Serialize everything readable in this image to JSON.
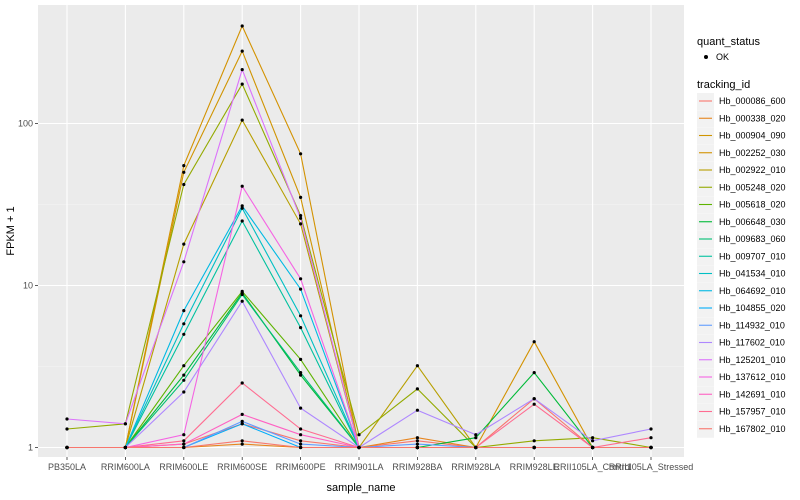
{
  "chart_data": {
    "type": "line",
    "xlabel": "sample_name",
    "ylabel": "FPKM + 1",
    "y_scale": "log10",
    "ylim": [
      0.9,
      450
    ],
    "y_ticks": [
      1,
      10,
      100
    ],
    "y_tick_labels": [
      "1",
      "10",
      "100"
    ],
    "categories": [
      "PB350LA",
      "RRIM600LA",
      "RRIM600LE",
      "RRIM600SE",
      "RRIM600PE",
      "RRIM901LA",
      "RRIM928BA",
      "RRIM928LA",
      "RRIM928LE",
      "RRII105LA_Control",
      "RRII105LA_Stressed"
    ],
    "legend_point_title": "quant_status",
    "legend_point_label": "OK",
    "legend_line_title": "tracking_id",
    "series": [
      {
        "name": "Hb_000086_600",
        "color": "#F8766D",
        "values": [
          1.0,
          1.0,
          1.05,
          1.4,
          1.1,
          1.0,
          1.1,
          1.0,
          2.0,
          1.0,
          1.0
        ]
      },
      {
        "name": "Hb_000338_020",
        "color": "#E7851E",
        "values": [
          1.0,
          1.0,
          1.0,
          1.05,
          1.0,
          1.0,
          1.15,
          1.0,
          1.0,
          1.0,
          1.0
        ]
      },
      {
        "name": "Hb_000904_090",
        "color": "#D09400",
        "values": [
          1.0,
          1.0,
          50,
          280,
          35,
          1.0,
          1.0,
          1.0,
          1.0,
          1.0,
          1.0
        ]
      },
      {
        "name": "Hb_002252_030",
        "color": "#D39200",
        "values": [
          1.0,
          1.0,
          55,
          400,
          65,
          1.0,
          1.0,
          1.0,
          4.5,
          1.0,
          1.0
        ]
      },
      {
        "name": "Hb_002922_010",
        "color": "#B79F00",
        "values": [
          1.0,
          1.0,
          18,
          105,
          24,
          1.0,
          3.2,
          1.0,
          1.0,
          1.0,
          1.0
        ]
      },
      {
        "name": "Hb_005248_020",
        "color": "#93AA00",
        "values": [
          1.3,
          1.4,
          42,
          175,
          27,
          1.2,
          2.3,
          1.0,
          1.1,
          1.15,
          1.0
        ]
      },
      {
        "name": "Hb_005618_020",
        "color": "#5EB300",
        "values": [
          1.0,
          1.0,
          3.2,
          9.2,
          3.5,
          1.0,
          1.0,
          1.0,
          1.0,
          1.0,
          1.0
        ]
      },
      {
        "name": "Hb_006648_030",
        "color": "#00BA38",
        "values": [
          1.0,
          1.0,
          2.8,
          9.0,
          2.8,
          1.0,
          1.0,
          1.15,
          2.9,
          1.0,
          1.0
        ]
      },
      {
        "name": "Hb_009683_060",
        "color": "#00BF74",
        "values": [
          1.0,
          1.0,
          2.6,
          8.8,
          2.9,
          1.0,
          1.0,
          1.0,
          1.0,
          1.0,
          1.0
        ]
      },
      {
        "name": "Hb_009707_010",
        "color": "#00C19F",
        "values": [
          1.0,
          1.0,
          5.0,
          25,
          5.5,
          1.0,
          1.0,
          1.0,
          1.0,
          1.0,
          1.0
        ]
      },
      {
        "name": "Hb_041534_010",
        "color": "#00BFC4",
        "values": [
          1.0,
          1.0,
          5.8,
          30,
          6.5,
          1.0,
          1.0,
          1.0,
          1.0,
          1.0,
          1.0
        ]
      },
      {
        "name": "Hb_064692_010",
        "color": "#00B9E3",
        "values": [
          1.0,
          1.0,
          7.0,
          31,
          9.5,
          1.0,
          1.0,
          1.0,
          1.0,
          1.0,
          1.0
        ]
      },
      {
        "name": "Hb_104855_020",
        "color": "#00ADFA",
        "values": [
          1.0,
          1.0,
          1.0,
          1.4,
          1.0,
          1.0,
          1.0,
          1.0,
          1.0,
          1.0,
          1.0
        ]
      },
      {
        "name": "Hb_114932_010",
        "color": "#619CFF",
        "values": [
          1.0,
          1.0,
          1.0,
          1.45,
          1.05,
          1.0,
          1.05,
          1.0,
          1.0,
          1.0,
          1.0
        ]
      },
      {
        "name": "Hb_117602_010",
        "color": "#AE87FF",
        "values": [
          1.0,
          1.0,
          2.2,
          8.0,
          1.75,
          1.0,
          1.7,
          1.2,
          2.0,
          1.1,
          1.3
        ]
      },
      {
        "name": "Hb_125201_010",
        "color": "#DB72FB",
        "values": [
          1.5,
          1.4,
          14,
          215,
          26,
          1.0,
          1.0,
          1.0,
          1.0,
          1.0,
          1.0
        ]
      },
      {
        "name": "Hb_137612_010",
        "color": "#F564E3",
        "values": [
          1.0,
          1.0,
          1.2,
          41,
          11,
          1.0,
          1.0,
          1.0,
          1.0,
          1.0,
          1.0
        ]
      },
      {
        "name": "Hb_142691_010",
        "color": "#FF61C3",
        "values": [
          1.0,
          1.0,
          1.05,
          1.6,
          1.2,
          1.0,
          1.0,
          1.0,
          1.0,
          1.0,
          1.0
        ]
      },
      {
        "name": "Hb_157957_010",
        "color": "#FF6C91",
        "values": [
          1.0,
          1.0,
          1.1,
          2.5,
          1.3,
          1.0,
          1.0,
          1.0,
          1.85,
          1.0,
          1.15
        ]
      },
      {
        "name": "Hb_167802_010",
        "color": "#F8766D",
        "values": [
          1.0,
          1.0,
          1.0,
          1.1,
          1.0,
          1.0,
          1.0,
          1.0,
          1.0,
          1.0,
          1.0
        ]
      }
    ]
  }
}
